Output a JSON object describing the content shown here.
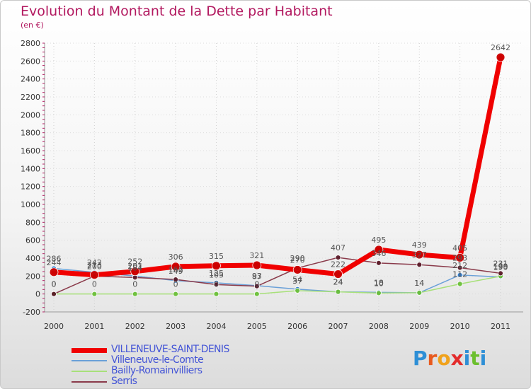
{
  "title": "Evolution du Montant de la Dette par Habitant",
  "unit_label": "(en €)",
  "logo": {
    "text": "Proxiti",
    "colors": [
      "#2e8fd6",
      "#e85a1e",
      "#f0a21c",
      "#e32c2c",
      "#2e8fd6",
      "#6cbf2e",
      "#2e8fd6"
    ]
  },
  "chart_data": {
    "type": "line",
    "title": "Evolution du Montant de la Dette par Habitant",
    "ylabel": "(en €)",
    "xlabel": "",
    "ylim": [
      -200,
      2800
    ],
    "yticks": [
      -200,
      0,
      200,
      400,
      600,
      800,
      1000,
      1200,
      1400,
      1600,
      1800,
      2000,
      2200,
      2400,
      2600,
      2800
    ],
    "categories": [
      "2000",
      "2001",
      "2002",
      "2003",
      "2004",
      "2005",
      "2006",
      "2007",
      "2008",
      "2009",
      "2010",
      "2011"
    ],
    "series": [
      {
        "name": "VILLENEUVE-SAINT-DENIS",
        "color": "#f00000",
        "marker": "#cc0000",
        "emphasis": true,
        "values": [
          244,
          213,
          252,
          306,
          315,
          321,
          270,
          222,
          495,
          439,
          405,
          2642
        ]
      },
      {
        "name": "Villeneuve-le-Comte",
        "color": "#6aa0d8",
        "marker": "#2e79c9",
        "emphasis": false,
        "values": [
          286,
          242,
          201,
          149,
          125,
          93,
          54,
          24,
          18,
          14,
          212,
          190
        ]
      },
      {
        "name": "Bailly-Romainvilliers",
        "color": "#a8e07a",
        "marker": "#6cc03a",
        "emphasis": false,
        "values": [
          0,
          0,
          0,
          0,
          0,
          0,
          37,
          24,
          10,
          14,
          112,
          199
        ]
      },
      {
        "name": "Serris",
        "color": "#8a3a4a",
        "marker": "#5a1a28",
        "emphasis": false,
        "values": [
          0,
          200,
          184,
          162,
          105,
          87,
          290,
          407,
          346,
          327,
          293,
          231
        ]
      }
    ]
  }
}
